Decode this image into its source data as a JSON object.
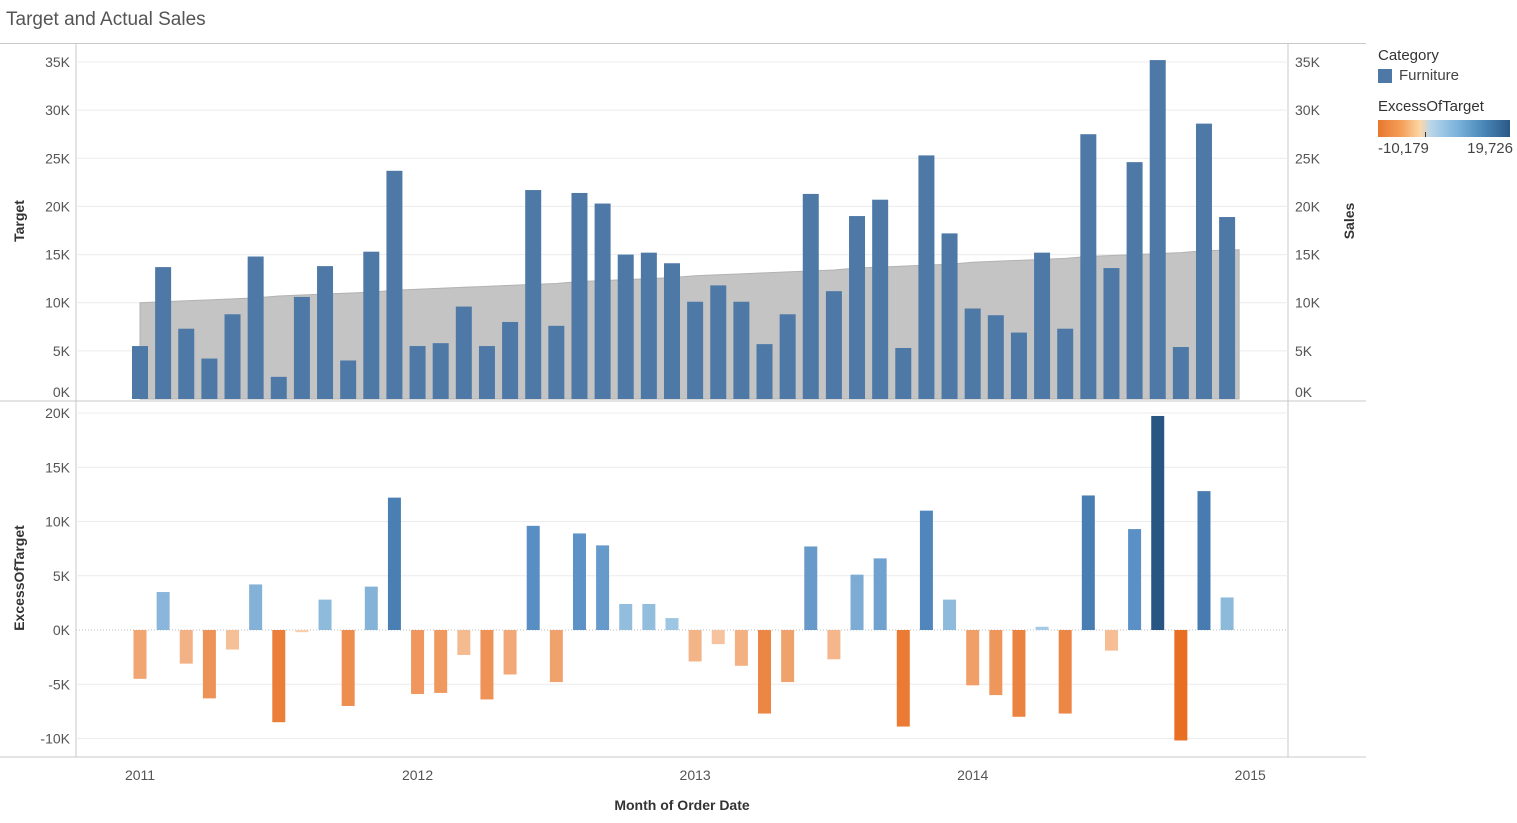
{
  "title": "Target and Actual Sales",
  "legend": {
    "category_title": "Category",
    "category_item": "Furniture",
    "category_color": "#4e79a7",
    "excess_title": "ExcessOfTarget",
    "excess_min_label": "-10,179",
    "excess_max_label": "19,726"
  },
  "chart_data": [
    {
      "type": "bar",
      "name": "sales-vs-target",
      "xlabel": "Month of Order Date",
      "ylabel_left": "Target",
      "ylabel_right": "Sales",
      "ylim": [
        -1500,
        35000
      ],
      "y_ticks": [
        {
          "value": 0,
          "label": "0K"
        },
        {
          "value": 5000,
          "label": "5K"
        },
        {
          "value": 10000,
          "label": "10K"
        },
        {
          "value": 15000,
          "label": "15K"
        },
        {
          "value": 20000,
          "label": "20K"
        },
        {
          "value": 25000,
          "label": "25K"
        },
        {
          "value": 30000,
          "label": "30K"
        },
        {
          "value": 35000,
          "label": "35K"
        }
      ],
      "x": [
        "2011-01",
        "2011-02",
        "2011-03",
        "2011-04",
        "2011-05",
        "2011-06",
        "2011-07",
        "2011-08",
        "2011-09",
        "2011-10",
        "2011-11",
        "2011-12",
        "2012-01",
        "2012-02",
        "2012-03",
        "2012-04",
        "2012-05",
        "2012-06",
        "2012-07",
        "2012-08",
        "2012-09",
        "2012-10",
        "2012-11",
        "2012-12",
        "2013-01",
        "2013-02",
        "2013-03",
        "2013-04",
        "2013-05",
        "2013-06",
        "2013-07",
        "2013-08",
        "2013-09",
        "2013-10",
        "2013-11",
        "2013-12",
        "2014-01",
        "2014-02",
        "2014-03",
        "2014-04",
        "2014-05",
        "2014-06",
        "2014-07",
        "2014-08",
        "2014-09",
        "2014-10",
        "2014-11",
        "2014-12"
      ],
      "series": [
        {
          "name": "Sales",
          "color": "#4e79a7",
          "values": [
            5500,
            13700,
            7300,
            4200,
            8800,
            14800,
            2300,
            10600,
            13800,
            4000,
            15300,
            23700,
            5500,
            5800,
            9600,
            5500,
            8000,
            21700,
            7600,
            21400,
            20300,
            15000,
            15200,
            14100,
            10100,
            11800,
            10100,
            5700,
            8800,
            21300,
            11200,
            19000,
            20700,
            5300,
            25300,
            17200,
            9400,
            8700,
            6900,
            15200,
            7300,
            27500,
            13600,
            24600,
            35200,
            5400,
            28600,
            18900
          ]
        },
        {
          "name": "Target",
          "color": "#c4c4c4",
          "values": [
            10000,
            10100,
            10200,
            10300,
            10400,
            10500,
            10700,
            10800,
            10900,
            11000,
            11100,
            11300,
            11400,
            11500,
            11600,
            11700,
            11800,
            11900,
            12000,
            12200,
            12300,
            12400,
            12500,
            12600,
            12800,
            12900,
            13000,
            13100,
            13200,
            13300,
            13400,
            13600,
            13700,
            13800,
            13900,
            14000,
            14200,
            14300,
            14400,
            14500,
            14600,
            14800,
            14900,
            15000,
            15100,
            15200,
            15400,
            15500
          ]
        }
      ]
    },
    {
      "type": "bar",
      "name": "excess-of-target",
      "xlabel": "Month of Order Date",
      "ylabel": "ExcessOfTarget",
      "ylim": [
        -11000,
        20500
      ],
      "y_ticks": [
        {
          "value": -10000,
          "label": "-10K"
        },
        {
          "value": -5000,
          "label": "-5K"
        },
        {
          "value": 0,
          "label": "0K"
        },
        {
          "value": 5000,
          "label": "5K"
        },
        {
          "value": 10000,
          "label": "10K"
        },
        {
          "value": 15000,
          "label": "15K"
        },
        {
          "value": 20000,
          "label": "20K"
        }
      ],
      "x_ticks": [
        "2011",
        "2012",
        "2013",
        "2014",
        "2015"
      ],
      "color_range": [
        -10179,
        19726
      ],
      "series": [
        {
          "name": "ExcessOfTarget",
          "values": [
            -4500,
            3500,
            -3100,
            -6300,
            -1800,
            4200,
            -8500,
            -200,
            2800,
            -7000,
            4000,
            12200,
            -5900,
            -5800,
            -2300,
            -6400,
            -4100,
            9600,
            -4800,
            8900,
            7800,
            2400,
            2400,
            1100,
            -2900,
            -1300,
            -3300,
            -7700,
            -4800,
            7700,
            -2700,
            5100,
            6600,
            -8900,
            11000,
            2800,
            -5100,
            -6000,
            -8000,
            300,
            -7700,
            12400,
            -1900,
            9300,
            19726,
            -10179,
            12800,
            3000
          ]
        }
      ]
    }
  ]
}
